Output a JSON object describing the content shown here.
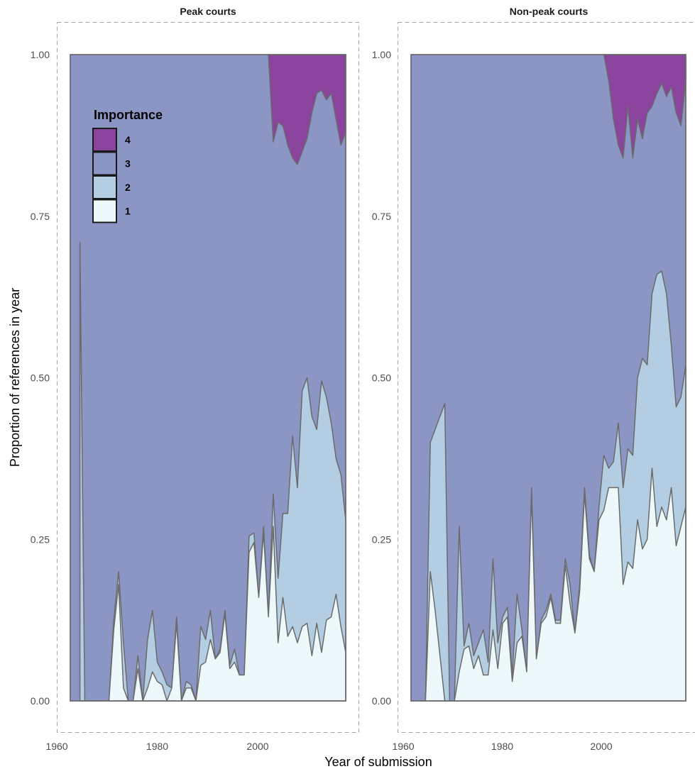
{
  "chart_data": {
    "type": "area",
    "xlabel": "Year of submission",
    "ylabel": "Proportion of references in year",
    "xlim": [
      1960,
      2017
    ],
    "ylim": [
      0,
      1
    ],
    "x_ticks": [
      1960,
      1980,
      2000
    ],
    "y_ticks": [
      "0.00",
      "0.25",
      "0.50",
      "0.75",
      "1.00"
    ],
    "legend": {
      "title": "Importance",
      "placement": "top-left inside first panel",
      "entries": [
        {
          "label": "4",
          "color": "#8b449e"
        },
        {
          "label": "3",
          "color": "#8b96c5"
        },
        {
          "label": "2",
          "color": "#b3cde3"
        },
        {
          "label": "1",
          "color": "#edf8fb"
        }
      ]
    },
    "colors": {
      "4": "#8b449e",
      "3": "#8b96c5",
      "2": "#b3cde3",
      "1": "#edf8fb",
      "outline": "#6b6b6b"
    },
    "panels": [
      {
        "title": "Peak courts",
        "x": [
          1962,
          1963
        ],
        "boundaries_note": "cumulative proportions",
        "boundary_1_2": {
          "x": [
            1962,
            1963,
            1964,
            1965,
            1966,
            1967,
            1968,
            1969,
            1970,
            1971,
            1972,
            1973,
            1974,
            1975,
            1976,
            1977,
            1978,
            1979,
            1980,
            1981,
            1982,
            1983,
            1984,
            1985,
            1986,
            1987,
            1988,
            1989,
            1990,
            1991,
            1992,
            1993,
            1994,
            1995,
            1996,
            1997,
            1998,
            1999,
            2000,
            2001,
            2002,
            2003,
            2004,
            2005,
            2006,
            2007,
            2008,
            2009,
            2010,
            2011,
            2012,
            2013,
            2014,
            2015,
            2016,
            2017
          ],
          "y": [
            0,
            0,
            0,
            0,
            0,
            0,
            0,
            0.11,
            0.18,
            0.02,
            0,
            0,
            0.05,
            0,
            0.02,
            0.045,
            0.03,
            0.025,
            0,
            0.02,
            0.12,
            0,
            0.02,
            0.02,
            0,
            0.055,
            0.06,
            0.095,
            0.065,
            0.075,
            0.135,
            0.05,
            0.06,
            0.04,
            0.04,
            0.23,
            0.245,
            0.16,
            0.26,
            0.13,
            0.27,
            0.09,
            0.16,
            0.1,
            0.115,
            0.09,
            0.115,
            0.12,
            0.07,
            0.12,
            0.075,
            0.125,
            0.13,
            0.165,
            0.115,
            0.075
          ]
        },
        "boundary_2_3": {
          "x": [
            1962,
            1963,
            1964,
            1965,
            1966,
            1967,
            1968,
            1969,
            1970,
            1971,
            1972,
            1973,
            1974,
            1975,
            1976,
            1977,
            1978,
            1979,
            1980,
            1981,
            1982,
            1983,
            1984,
            1985,
            1986,
            1987,
            1988,
            1989,
            1990,
            1991,
            1992,
            1993,
            1994,
            1995,
            1996,
            1997,
            1998,
            1999,
            2000,
            2001,
            2002,
            2003,
            2004,
            2005,
            2006,
            2007,
            2008,
            2009,
            2010,
            2011,
            2012,
            2013,
            2014,
            2015,
            2016,
            2017
          ],
          "y": [
            0.71,
            0,
            0,
            0,
            0,
            0,
            0,
            0.125,
            0.2,
            0.09,
            0,
            0,
            0.07,
            0,
            0.095,
            0.14,
            0.06,
            0.045,
            0.025,
            0.02,
            0.13,
            0,
            0.03,
            0.025,
            0,
            0.115,
            0.095,
            0.14,
            0.065,
            0.08,
            0.14,
            0.055,
            0.08,
            0.04,
            0.04,
            0.255,
            0.26,
            0.16,
            0.27,
            0.13,
            0.32,
            0.19,
            0.29,
            0.29,
            0.41,
            0.33,
            0.48,
            0.5,
            0.44,
            0.42,
            0.495,
            0.47,
            0.43,
            0.375,
            0.35,
            0.28
          ]
        },
        "boundary_3_4": {
          "x": [
            2001,
            2002,
            2003,
            2004,
            2005,
            2006,
            2007,
            2008,
            2009,
            2010,
            2011,
            2012,
            2013,
            2014,
            2015,
            2016,
            2017
          ],
          "y": [
            1.0,
            0.865,
            0.895,
            0.89,
            0.86,
            0.84,
            0.83,
            0.85,
            0.87,
            0.91,
            0.94,
            0.945,
            0.93,
            0.94,
            0.9,
            0.86,
            0.88
          ]
        }
      },
      {
        "title": "Non-peak courts",
        "boundary_1_2": {
          "x": [
            1962,
            1963,
            1964,
            1965,
            1966,
            1967,
            1968,
            1969,
            1970,
            1971,
            1972,
            1973,
            1974,
            1975,
            1976,
            1977,
            1978,
            1979,
            1980,
            1981,
            1982,
            1983,
            1984,
            1985,
            1986,
            1987,
            1988,
            1989,
            1990,
            1991,
            1992,
            1993,
            1994,
            1995,
            1996,
            1997,
            1998,
            1999,
            2000,
            2001,
            2002,
            2003,
            2004,
            2005,
            2006,
            2007,
            2008,
            2009,
            2010,
            2011,
            2012,
            2013,
            2014,
            2015,
            2016,
            2017
          ],
          "y": [
            0,
            0,
            0.2,
            0.14,
            0.07,
            0,
            0,
            0,
            0.045,
            0.08,
            0.085,
            0.05,
            0.07,
            0.04,
            0.04,
            0.11,
            0.05,
            0.12,
            0.13,
            0.03,
            0.09,
            0.1,
            0.045,
            0.32,
            0.065,
            0.12,
            0.13,
            0.16,
            0.12,
            0.12,
            0.21,
            0.15,
            0.105,
            0.17,
            0.32,
            0.22,
            0.2,
            0.28,
            0.295,
            0.33,
            0.33,
            0.33,
            0.18,
            0.215,
            0.205,
            0.28,
            0.235,
            0.25,
            0.36,
            0.27,
            0.3,
            0.28,
            0.33,
            0.24,
            0.27,
            0.3
          ]
        },
        "boundary_2_3": {
          "x": [
            1962,
            1963,
            1964,
            1965,
            1966,
            1967,
            1968,
            1969,
            1970,
            1971,
            1972,
            1973,
            1974,
            1975,
            1976,
            1977,
            1978,
            1979,
            1980,
            1981,
            1982,
            1983,
            1984,
            1985,
            1986,
            1987,
            1988,
            1989,
            1990,
            1991,
            1992,
            1993,
            1994,
            1995,
            1996,
            1997,
            1998,
            1999,
            2000,
            2001,
            2002,
            2003,
            2004,
            2005,
            2006,
            2007,
            2008,
            2009,
            2010,
            2011,
            2012,
            2013,
            2014,
            2015,
            2016,
            2017
          ],
          "y": [
            0,
            0,
            0.4,
            0.42,
            0.44,
            0.46,
            0,
            0,
            0.27,
            0.085,
            0.12,
            0.07,
            0.09,
            0.11,
            0.06,
            0.22,
            0.09,
            0.13,
            0.145,
            0.04,
            0.165,
            0.11,
            0.045,
            0.33,
            0.065,
            0.125,
            0.14,
            0.165,
            0.125,
            0.125,
            0.22,
            0.18,
            0.105,
            0.18,
            0.33,
            0.225,
            0.2,
            0.3,
            0.38,
            0.36,
            0.37,
            0.43,
            0.33,
            0.39,
            0.38,
            0.5,
            0.53,
            0.52,
            0.63,
            0.66,
            0.665,
            0.63,
            0.55,
            0.455,
            0.47,
            0.52
          ]
        },
        "boundary_3_4": {
          "x": [
            2000,
            2001,
            2002,
            2003,
            2004,
            2005,
            2006,
            2007,
            2008,
            2009,
            2010,
            2011,
            2012,
            2013,
            2014,
            2015,
            2016,
            2017
          ],
          "y": [
            1.0,
            0.96,
            0.9,
            0.86,
            0.84,
            0.92,
            0.84,
            0.9,
            0.87,
            0.91,
            0.92,
            0.94,
            0.955,
            0.935,
            0.95,
            0.91,
            0.89,
            0.96
          ]
        }
      }
    ]
  }
}
